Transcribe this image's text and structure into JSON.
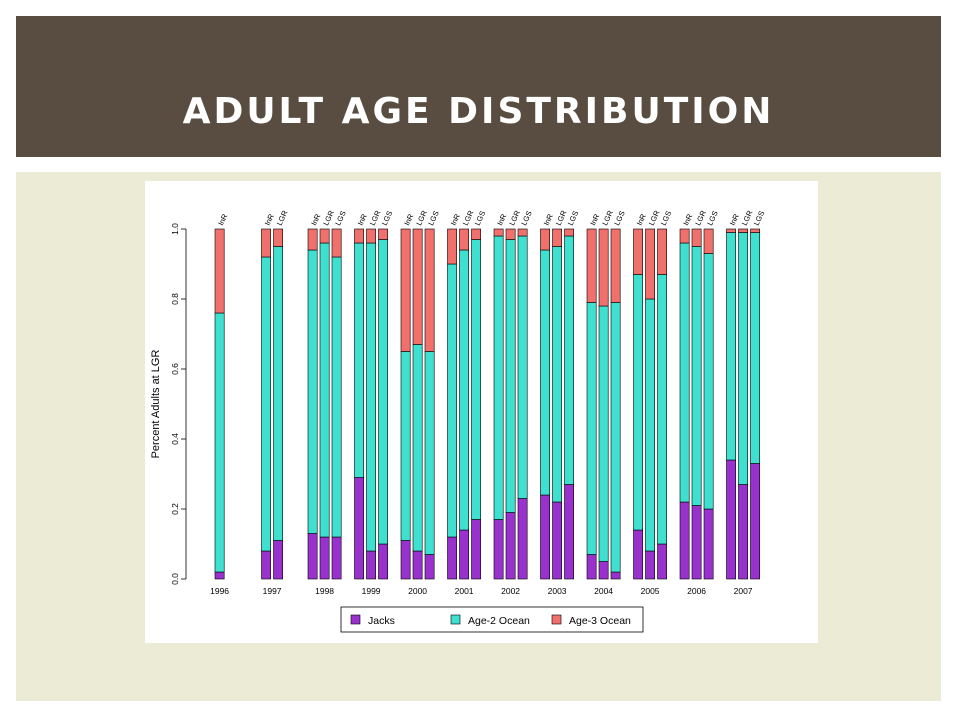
{
  "slide": {
    "title": "ADULT AGE DISTRIBUTION"
  },
  "colors": {
    "header_bg": "#584d40",
    "panel_bg": "#ececd6",
    "jacks": "#9932cc",
    "age2": "#40e0d0",
    "age3": "#f0706c"
  },
  "chart_data": {
    "type": "bar",
    "stacked": true,
    "title": "",
    "xlabel": "",
    "ylabel": "Percent Adults at LGR",
    "ylim": [
      0,
      1
    ],
    "yticks": [
      "0.0",
      "0.2",
      "0.4",
      "0.6",
      "0.8",
      "1.0"
    ],
    "legend": {
      "placement": "bottom",
      "entries": [
        "Jacks",
        "Age-2 Ocean",
        "Age-3 Ocean"
      ]
    },
    "groups": [
      {
        "year": "1996",
        "bars": [
          {
            "label": "InR",
            "jacks": 0.02,
            "age2": 0.74,
            "age3": 0.24
          }
        ]
      },
      {
        "year": "1997",
        "bars": [
          {
            "label": "InR",
            "jacks": 0.08,
            "age2": 0.84,
            "age3": 0.08
          },
          {
            "label": "LGR",
            "jacks": 0.11,
            "age2": 0.84,
            "age3": 0.05
          }
        ]
      },
      {
        "year": "1998",
        "bars": [
          {
            "label": "InR",
            "jacks": 0.13,
            "age2": 0.81,
            "age3": 0.06
          },
          {
            "label": "LGR",
            "jacks": 0.12,
            "age2": 0.84,
            "age3": 0.04
          },
          {
            "label": "LGS",
            "jacks": 0.12,
            "age2": 0.8,
            "age3": 0.08
          }
        ]
      },
      {
        "year": "1999",
        "bars": [
          {
            "label": "InR",
            "jacks": 0.29,
            "age2": 0.67,
            "age3": 0.04
          },
          {
            "label": "LGR",
            "jacks": 0.08,
            "age2": 0.88,
            "age3": 0.04
          },
          {
            "label": "LGS",
            "jacks": 0.1,
            "age2": 0.87,
            "age3": 0.03
          }
        ]
      },
      {
        "year": "2000",
        "bars": [
          {
            "label": "InR",
            "jacks": 0.11,
            "age2": 0.54,
            "age3": 0.35
          },
          {
            "label": "LGR",
            "jacks": 0.08,
            "age2": 0.59,
            "age3": 0.33
          },
          {
            "label": "LGS",
            "jacks": 0.07,
            "age2": 0.58,
            "age3": 0.35
          }
        ]
      },
      {
        "year": "2001",
        "bars": [
          {
            "label": "InR",
            "jacks": 0.12,
            "age2": 0.78,
            "age3": 0.1
          },
          {
            "label": "LGR",
            "jacks": 0.14,
            "age2": 0.8,
            "age3": 0.06
          },
          {
            "label": "LGS",
            "jacks": 0.17,
            "age2": 0.8,
            "age3": 0.03
          }
        ]
      },
      {
        "year": "2002",
        "bars": [
          {
            "label": "InR",
            "jacks": 0.17,
            "age2": 0.81,
            "age3": 0.02
          },
          {
            "label": "LGR",
            "jacks": 0.19,
            "age2": 0.78,
            "age3": 0.03
          },
          {
            "label": "LGS",
            "jacks": 0.23,
            "age2": 0.75,
            "age3": 0.02
          }
        ]
      },
      {
        "year": "2003",
        "bars": [
          {
            "label": "InR",
            "jacks": 0.24,
            "age2": 0.7,
            "age3": 0.06
          },
          {
            "label": "LGR",
            "jacks": 0.22,
            "age2": 0.73,
            "age3": 0.05
          },
          {
            "label": "LGS",
            "jacks": 0.27,
            "age2": 0.71,
            "age3": 0.02
          }
        ]
      },
      {
        "year": "2004",
        "bars": [
          {
            "label": "InR",
            "jacks": 0.07,
            "age2": 0.72,
            "age3": 0.21
          },
          {
            "label": "LGR",
            "jacks": 0.05,
            "age2": 0.73,
            "age3": 0.22
          },
          {
            "label": "LGS",
            "jacks": 0.02,
            "age2": 0.77,
            "age3": 0.21
          }
        ]
      },
      {
        "year": "2005",
        "bars": [
          {
            "label": "InR",
            "jacks": 0.14,
            "age2": 0.73,
            "age3": 0.13
          },
          {
            "label": "LGR",
            "jacks": 0.08,
            "age2": 0.72,
            "age3": 0.2
          },
          {
            "label": "LGS",
            "jacks": 0.1,
            "age2": 0.77,
            "age3": 0.13
          }
        ]
      },
      {
        "year": "2006",
        "bars": [
          {
            "label": "InR",
            "jacks": 0.22,
            "age2": 0.74,
            "age3": 0.04
          },
          {
            "label": "LGR",
            "jacks": 0.21,
            "age2": 0.74,
            "age3": 0.05
          },
          {
            "label": "LGS",
            "jacks": 0.2,
            "age2": 0.73,
            "age3": 0.07
          }
        ]
      },
      {
        "year": "2007",
        "bars": [
          {
            "label": "InR",
            "jacks": 0.34,
            "age2": 0.65,
            "age3": 0.01
          },
          {
            "label": "LGR",
            "jacks": 0.27,
            "age2": 0.72,
            "age3": 0.01
          },
          {
            "label": "LGS",
            "jacks": 0.33,
            "age2": 0.66,
            "age3": 0.01
          }
        ]
      }
    ]
  }
}
